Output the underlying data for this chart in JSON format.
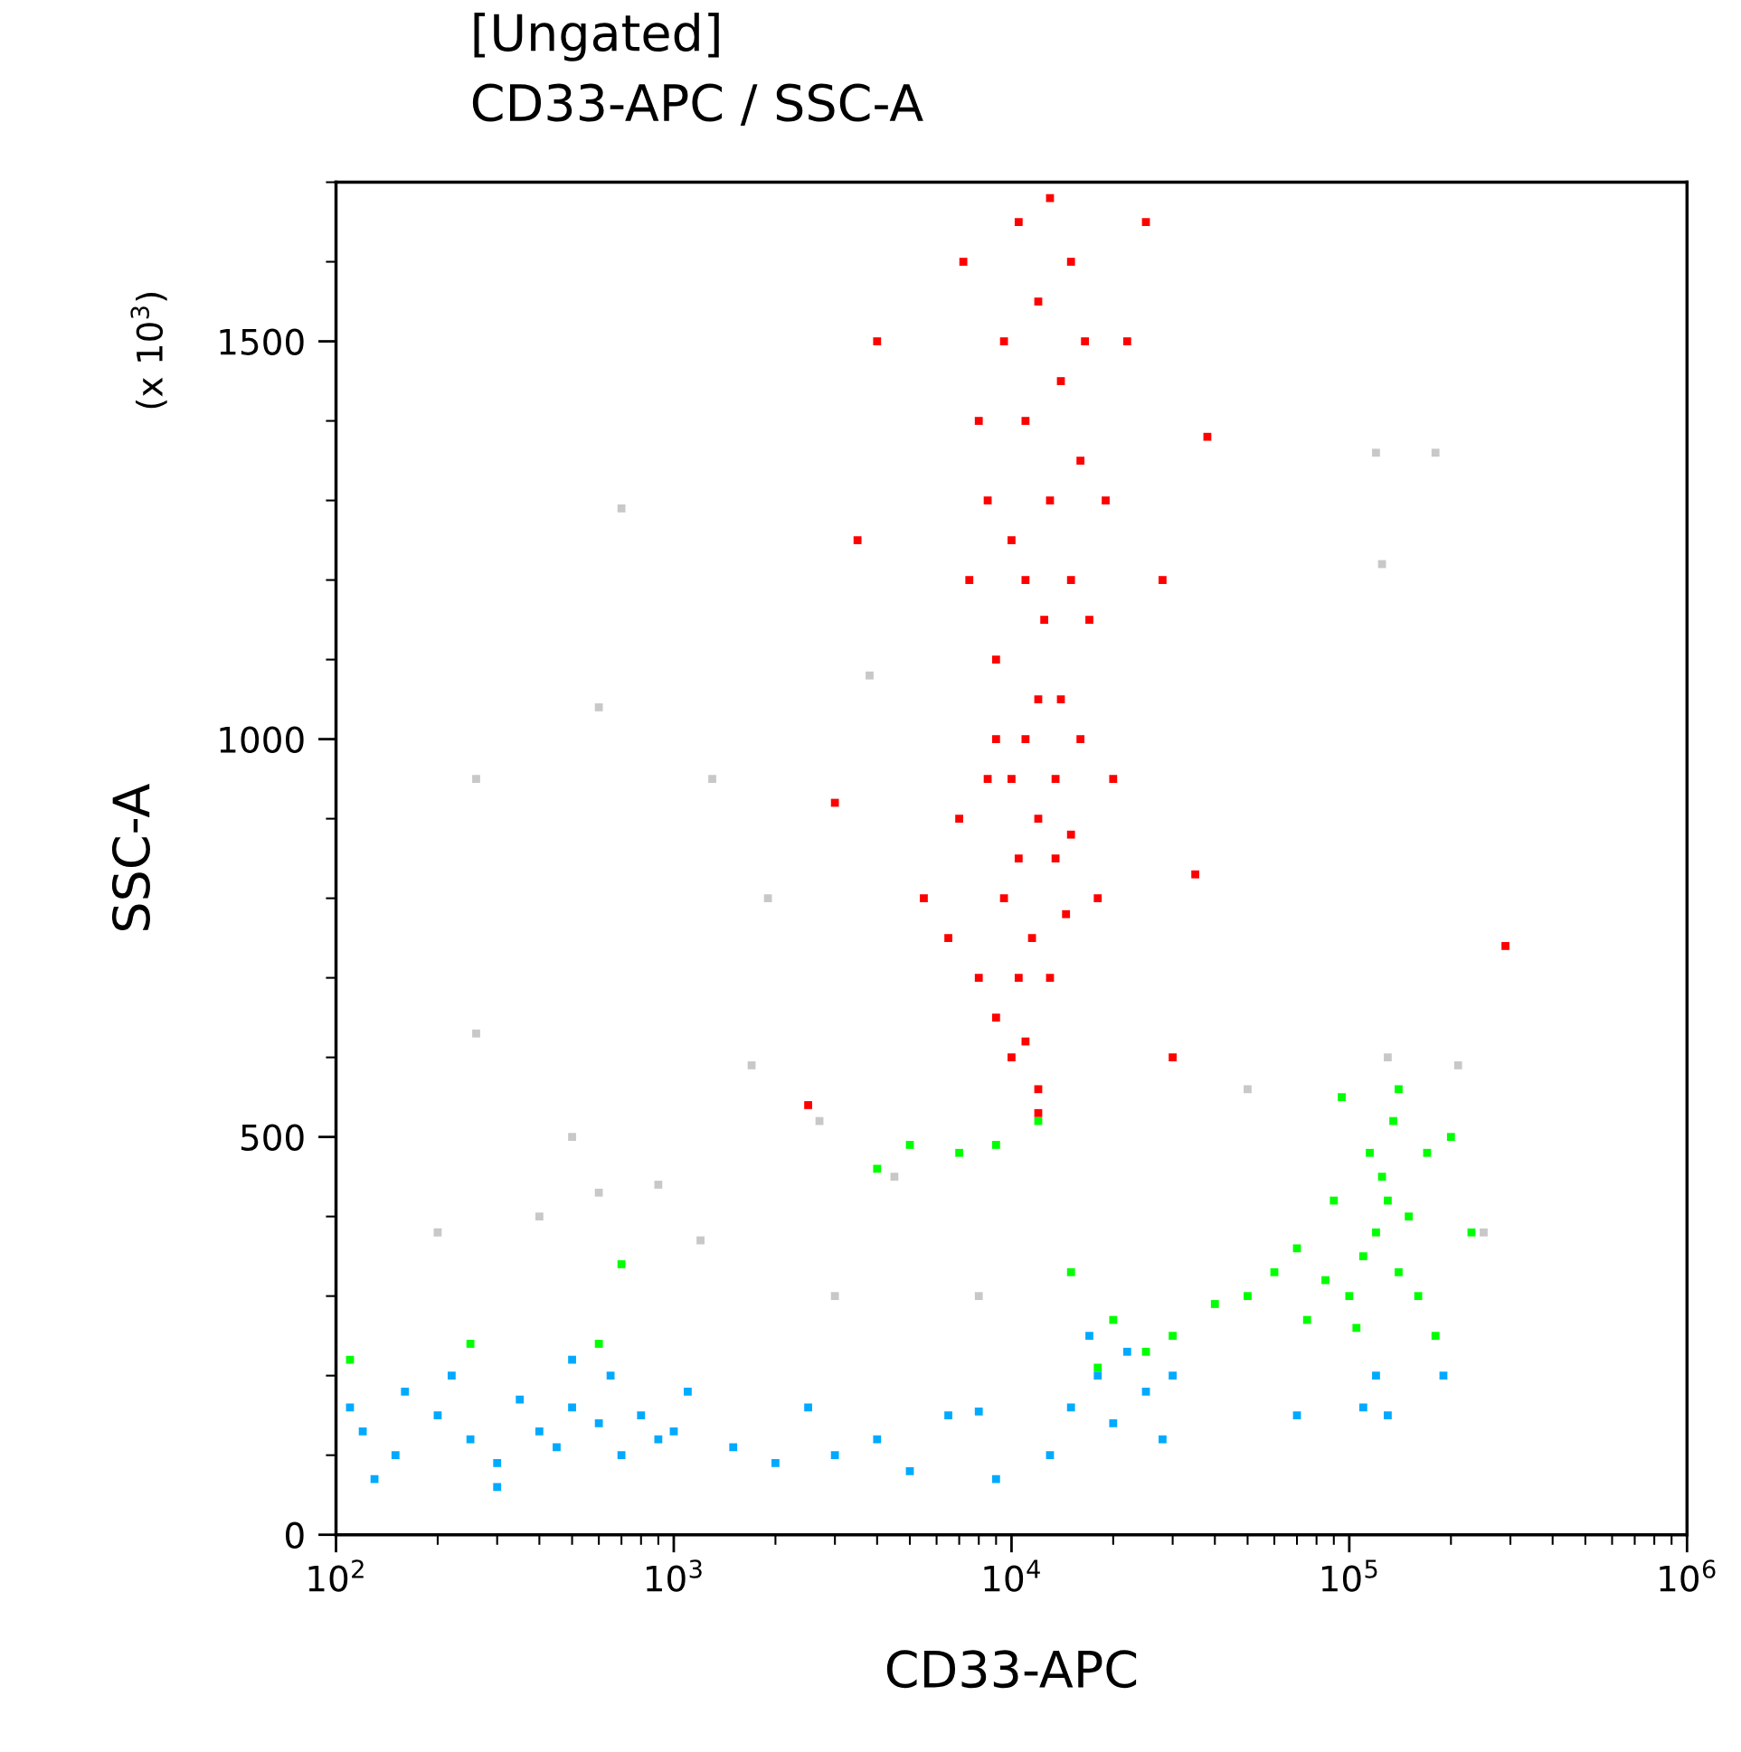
{
  "chart_data": {
    "type": "scatter",
    "title": "[Ungated]",
    "subtitle": "CD33-APC / SSC-A",
    "xlabel": "CD33-APC",
    "ylabel": "SSC-A",
    "annotations": [
      "(x 10$^{3}$)"
    ],
    "log": "x",
    "marker": "square",
    "xlim": [
      100,
      1000000
    ],
    "xticks": [
      {
        "value": 100,
        "label": "10$^{2}$"
      },
      {
        "value": 1000,
        "label": "10$^{3}$"
      },
      {
        "value": 10000,
        "label": "10$^{4}$"
      },
      {
        "value": 100000,
        "label": "10$^{5}$"
      },
      {
        "value": 1000000,
        "label": "10$^{6}$"
      }
    ],
    "ylim": [
      0,
      1700
    ],
    "yticks": [
      0,
      500,
      1000,
      1500
    ],
    "series": [
      {
        "color": "#c8c8c8",
        "x": [
          260,
          600,
          700,
          1300,
          1900,
          260,
          1700,
          3800,
          200,
          400,
          500,
          900,
          1200,
          2700,
          4500,
          8000,
          50000,
          120000,
          180000,
          125000,
          130000,
          210000,
          250000,
          3000,
          600
        ],
        "values": [
          950,
          1040,
          1290,
          950,
          800,
          630,
          590,
          1080,
          380,
          400,
          500,
          440,
          370,
          520,
          450,
          300,
          560,
          1360,
          1360,
          1220,
          600,
          590,
          380,
          300,
          430
        ]
      },
      {
        "color": "#00aaff",
        "x": [
          120,
          150,
          200,
          250,
          300,
          350,
          400,
          450,
          500,
          600,
          700,
          800,
          900,
          1000,
          1100,
          160,
          220,
          300,
          500,
          650,
          130,
          110,
          1500,
          2000,
          2500,
          3000,
          4000,
          5000,
          6500,
          8000,
          9000,
          15000,
          18000,
          20000,
          22000,
          25000,
          28000,
          30000,
          13000,
          17000,
          110000,
          120000,
          130000,
          190000,
          70000
        ],
        "values": [
          130,
          100,
          150,
          120,
          90,
          170,
          130,
          110,
          160,
          140,
          100,
          150,
          120,
          130,
          180,
          180,
          200,
          60,
          220,
          200,
          70,
          160,
          110,
          90,
          160,
          100,
          120,
          80,
          150,
          155,
          70,
          160,
          200,
          140,
          230,
          180,
          120,
          200,
          100,
          250,
          160,
          200,
          150,
          200,
          150
        ]
      },
      {
        "color": "#00ff00",
        "x": [
          120000,
          110000,
          130000,
          140000,
          100000,
          125000,
          150000,
          115000,
          135000,
          105000,
          160000,
          170000,
          90000,
          200000,
          85000,
          230000,
          180000,
          95000,
          60000,
          50000,
          40000,
          70000,
          30000,
          25000,
          20000,
          15000,
          18000,
          12000,
          9000,
          7000,
          5000,
          4000,
          600,
          700,
          250,
          110,
          140000,
          75000
        ],
        "values": [
          380,
          350,
          420,
          330,
          300,
          450,
          400,
          480,
          520,
          260,
          300,
          480,
          420,
          500,
          320,
          380,
          250,
          550,
          330,
          300,
          290,
          360,
          250,
          230,
          270,
          330,
          210,
          520,
          490,
          480,
          490,
          460,
          240,
          340,
          240,
          220,
          560,
          270
        ]
      },
      {
        "color": "#ff0000",
        "x": [
          8000,
          9000,
          10000,
          11000,
          12000,
          9500,
          10500,
          12000,
          13500,
          15000,
          8500,
          11000,
          14000,
          16000,
          9000,
          12500,
          15000,
          10000,
          13000,
          16000,
          11000,
          14000,
          9500,
          12000,
          15000,
          10500,
          13000,
          7500,
          7000,
          6500,
          18000,
          20000,
          17000,
          19000,
          22000,
          8000,
          7200,
          25000,
          11500,
          13000,
          10000,
          12000,
          14500,
          9000,
          16500,
          5500,
          4000,
          3500,
          3000,
          28000,
          38000,
          35000,
          30000,
          2500,
          290000,
          12000,
          8500,
          11000,
          13500,
          10500
        ],
        "values": [
          700,
          650,
          600,
          620,
          560,
          800,
          850,
          900,
          950,
          880,
          950,
          1000,
          1050,
          1000,
          1100,
          1150,
          1200,
          1250,
          1300,
          1350,
          1400,
          1450,
          1500,
          1550,
          1600,
          1650,
          1680,
          1200,
          900,
          750,
          800,
          950,
          1150,
          1300,
          1500,
          1400,
          1600,
          1650,
          750,
          700,
          950,
          1050,
          780,
          1000,
          1500,
          800,
          1500,
          1250,
          920,
          1200,
          1380,
          830,
          600,
          540,
          740,
          530,
          1300,
          1200,
          850,
          700
        ]
      }
    ]
  }
}
